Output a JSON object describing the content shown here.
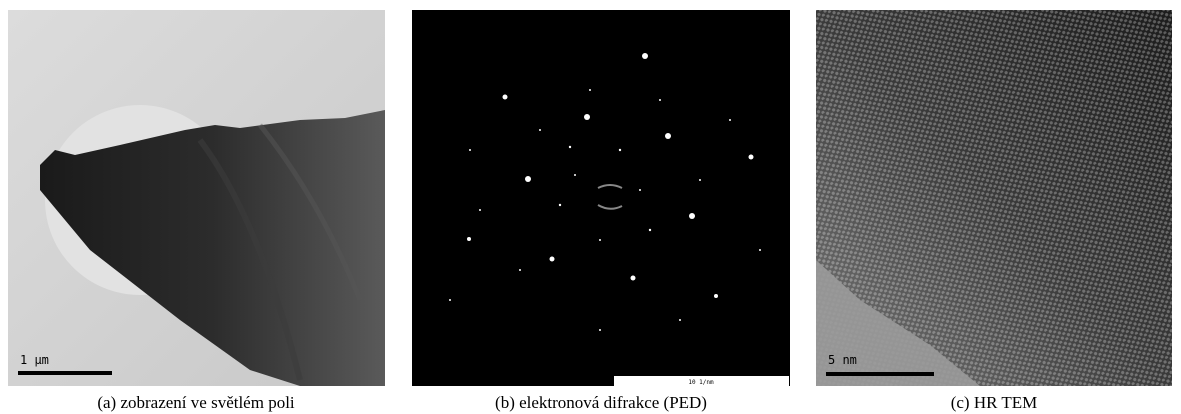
{
  "panels": [
    {
      "scale_label": "1 µm",
      "caption": "(a) zobrazení ve světlém poli"
    },
    {
      "scale_label": "10 1/nm",
      "caption": "(b) elektronová difrakce (PED)"
    },
    {
      "scale_label": "5 nm",
      "caption": "(c) HR TEM"
    }
  ]
}
